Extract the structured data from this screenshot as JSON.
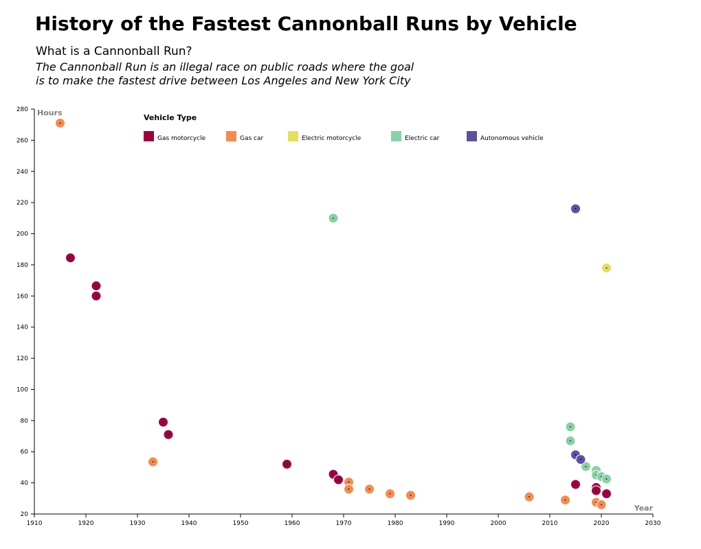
{
  "header": {
    "title": "History of the Fastest Cannonball Runs by Vehicle",
    "subtitle": "What is a Cannonball Run?",
    "description_line1": "The Cannonball Run is an illegal race on public roads where the goal",
    "description_line2": "is to make the fastest drive between Los Angeles and New York City"
  },
  "chart_data": {
    "type": "scatter",
    "xlabel": "Year",
    "ylabel": "Hours",
    "xlim": [
      1910,
      2030
    ],
    "ylim": [
      20,
      280
    ],
    "x_ticks": [
      1910,
      1920,
      1930,
      1940,
      1950,
      1960,
      1970,
      1980,
      1990,
      2000,
      2010,
      2020,
      2030
    ],
    "y_ticks": [
      20,
      40,
      60,
      80,
      100,
      120,
      140,
      160,
      180,
      200,
      220,
      240,
      260,
      280
    ],
    "grid": false,
    "legend_title": "Vehicle Type",
    "legend_position": "top",
    "series": [
      {
        "name": "Gas motorcycle",
        "color": "#9e0142",
        "points": [
          [
            1917,
            184.5
          ],
          [
            1922,
            166.5
          ],
          [
            1922,
            160
          ],
          [
            1935,
            79
          ],
          [
            1936,
            71
          ],
          [
            1959,
            52
          ],
          [
            1968,
            45.5
          ],
          [
            1969,
            42
          ],
          [
            2015,
            39
          ],
          [
            2019,
            37
          ],
          [
            2019,
            35
          ],
          [
            2021,
            33
          ]
        ]
      },
      {
        "name": "Gas car",
        "color": "#f68a4d",
        "points": [
          [
            1915,
            271
          ],
          [
            1933,
            53.5
          ],
          [
            1971,
            40.5
          ],
          [
            1971,
            36
          ],
          [
            1975,
            36
          ],
          [
            1979,
            33
          ],
          [
            1983,
            32
          ],
          [
            2006,
            31
          ],
          [
            2013,
            29
          ],
          [
            2019,
            27.5
          ],
          [
            2020,
            26
          ]
        ]
      },
      {
        "name": "Electric motorcycle",
        "color": "#e0e05e",
        "points": [
          [
            2021,
            178
          ]
        ]
      },
      {
        "name": "Electric car",
        "color": "#88d1a4",
        "points": [
          [
            1968,
            210
          ],
          [
            2014,
            76
          ],
          [
            2014,
            67
          ],
          [
            2017,
            50.5
          ],
          [
            2019,
            48
          ],
          [
            2019,
            45
          ],
          [
            2020,
            44
          ],
          [
            2021,
            42.5
          ]
        ]
      },
      {
        "name": "Autonomous vehicle",
        "color": "#5e4fa2",
        "points": [
          [
            2015,
            216
          ],
          [
            2015,
            58
          ],
          [
            2016,
            55
          ]
        ]
      }
    ]
  }
}
